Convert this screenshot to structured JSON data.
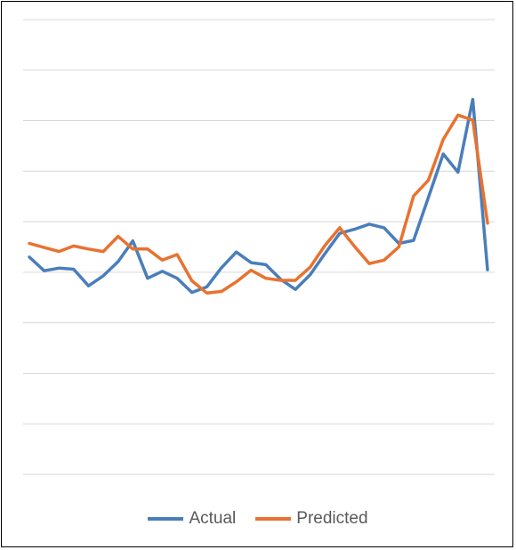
{
  "chart_data": {
    "type": "line",
    "title": "",
    "xlabel": "",
    "ylabel": "",
    "ylim": [
      0,
      9
    ],
    "grid": true,
    "legend": "bottom",
    "x": [
      1,
      2,
      3,
      4,
      5,
      6,
      7,
      8,
      9,
      10,
      11,
      12,
      13,
      14,
      15,
      16,
      17,
      18,
      19,
      20,
      21,
      22,
      23,
      24,
      25,
      26,
      27,
      28,
      29,
      30,
      31,
      32
    ],
    "series": [
      {
        "name": "Actual",
        "color": "#4a7ebb",
        "values": [
          4.3,
          4.03,
          4.08,
          4.06,
          3.73,
          3.93,
          4.21,
          4.62,
          3.88,
          4.02,
          3.88,
          3.6,
          3.71,
          4.09,
          4.4,
          4.19,
          4.15,
          3.86,
          3.66,
          3.95,
          4.37,
          4.77,
          4.85,
          4.95,
          4.88,
          4.57,
          4.63,
          5.48,
          6.34,
          5.98,
          7.42,
          4.05
        ]
      },
      {
        "name": "Predicted",
        "color": "#e87230",
        "values": [
          4.57,
          4.49,
          4.41,
          4.52,
          4.46,
          4.41,
          4.71,
          4.46,
          4.46,
          4.24,
          4.35,
          3.83,
          3.59,
          3.62,
          3.81,
          4.04,
          3.88,
          3.84,
          3.84,
          4.1,
          4.53,
          4.88,
          4.51,
          4.17,
          4.24,
          4.5,
          5.51,
          5.82,
          6.63,
          7.11,
          7.01,
          4.97
        ]
      }
    ]
  }
}
